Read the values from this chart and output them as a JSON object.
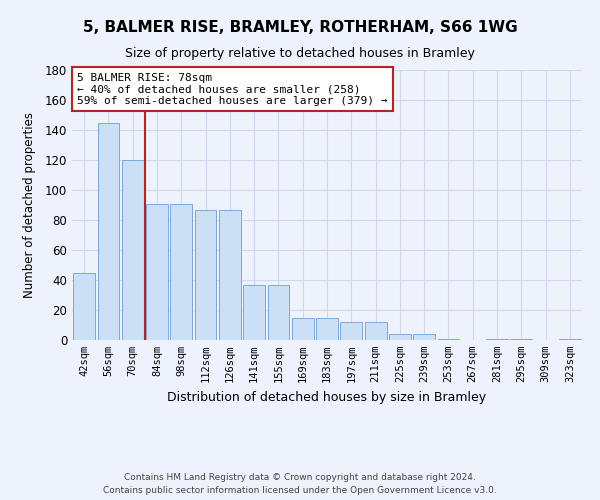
{
  "title": "5, BALMER RISE, BRAMLEY, ROTHERHAM, S66 1WG",
  "subtitle": "Size of property relative to detached houses in Bramley",
  "xlabel": "Distribution of detached houses by size in Bramley",
  "ylabel": "Number of detached properties",
  "categories": [
    "42sqm",
    "56sqm",
    "70sqm",
    "84sqm",
    "98sqm",
    "112sqm",
    "126sqm",
    "141sqm",
    "155sqm",
    "169sqm",
    "183sqm",
    "197sqm",
    "211sqm",
    "225sqm",
    "239sqm",
    "253sqm",
    "267sqm",
    "281sqm",
    "295sqm",
    "309sqm",
    "323sqm"
  ],
  "values": [
    45,
    145,
    120,
    91,
    91,
    87,
    87,
    37,
    37,
    15,
    15,
    12,
    12,
    4,
    4,
    1,
    0,
    1,
    1,
    0,
    1
  ],
  "bar_color": "#cce0f5",
  "bar_edge_color": "#7aaadd",
  "vline_x_index": 2.5,
  "vline_color": "#bb2222",
  "annotation_title": "5 BALMER RISE: 78sqm",
  "annotation_line1": "← 40% of detached houses are smaller (258)",
  "annotation_line2": "59% of semi-detached houses are larger (379) →",
  "annotation_box_color": "#bb2222",
  "ylim": [
    0,
    180
  ],
  "yticks": [
    0,
    20,
    40,
    60,
    80,
    100,
    120,
    140,
    160,
    180
  ],
  "footer_line1": "Contains HM Land Registry data © Crown copyright and database right 2024.",
  "footer_line2": "Contains public sector information licensed under the Open Government Licence v3.0.",
  "bg_color": "#eef2fc",
  "grid_color": "#d0d8ee"
}
